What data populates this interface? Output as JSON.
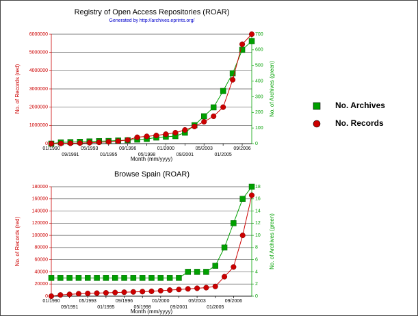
{
  "chart_data": [
    {
      "type": "line",
      "title": "Registry of Open Access Repositories (ROAR)",
      "subtitle": "Generated by http://archives.eprints.org/",
      "xlabel": "Month (mm/yyyy)",
      "ylabel": "No. of Records (red)",
      "y2label": "No. of Archives (green)",
      "categories": [
        "01/1990",
        null,
        "09/1991",
        null,
        "05/1993",
        null,
        "01/1995",
        null,
        "09/1996",
        null,
        "05/1998",
        null,
        "01/2000",
        null,
        "09/2001",
        null,
        "05/2003",
        null,
        "01/2005",
        null,
        "09/2006",
        null
      ],
      "ylim": [
        0,
        6000000
      ],
      "yticks": [
        0,
        1000000,
        2000000,
        3000000,
        4000000,
        5000000,
        6000000
      ],
      "y2lim": [
        0,
        700
      ],
      "y2ticks": [
        0,
        100,
        200,
        300,
        400,
        500,
        600,
        700
      ],
      "grid": true,
      "series": [
        {
          "name": "No. Archives",
          "color": "#00a000",
          "axis": "y2",
          "marker": "square",
          "values": [
            0,
            8,
            10,
            12,
            14,
            16,
            17,
            20,
            22,
            26,
            30,
            39,
            44,
            48,
            70,
            118,
            175,
            232,
            337,
            450,
            600,
            656
          ]
        },
        {
          "name": "No. Records",
          "color": "#cc0000",
          "marker": "circle",
          "values": [
            0,
            10000,
            20000,
            30000,
            50000,
            70000,
            100000,
            140000,
            200000,
            350000,
            400000,
            450000,
            520000,
            600000,
            750000,
            940000,
            1200000,
            1500000,
            2000000,
            3500000,
            5450000,
            6000000
          ]
        }
      ]
    },
    {
      "type": "line",
      "title": "Browse Spain (ROAR)",
      "xlabel": "Month (mm/yyyy)",
      "ylabel": "No. of Records (red)",
      "y2label": "No. of Archives (green)",
      "categories": [
        "01/1990",
        null,
        "09/1991",
        null,
        "05/1993",
        null,
        "01/1995",
        null,
        "09/1996",
        null,
        "05/1998",
        null,
        "01/2000",
        null,
        "09/2001",
        null,
        "05/2003",
        null,
        "01/2005",
        null,
        "09/2006",
        null,
        null
      ],
      "ylim": [
        0,
        180000
      ],
      "yticks": [
        0,
        20000,
        40000,
        60000,
        80000,
        100000,
        120000,
        140000,
        160000,
        180000
      ],
      "y2lim": [
        0,
        18
      ],
      "y2ticks": [
        0,
        2,
        4,
        6,
        8,
        10,
        12,
        14,
        16,
        18
      ],
      "grid": true,
      "series": [
        {
          "color": "#00a000",
          "axis": "y2",
          "marker": "square",
          "values": [
            3,
            3,
            3,
            3,
            3,
            3,
            3,
            3,
            3,
            3,
            3,
            3,
            3,
            3,
            3,
            4,
            4,
            4,
            5,
            8,
            12,
            16,
            18
          ]
        },
        {
          "color": "#cc0000",
          "marker": "circle",
          "values": [
            0,
            2000,
            3000,
            4000,
            4500,
            5000,
            5500,
            6000,
            6500,
            7000,
            7500,
            8000,
            9000,
            10000,
            11000,
            12000,
            13000,
            14000,
            16000,
            32000,
            48000,
            100000,
            166000
          ]
        }
      ]
    }
  ]
}
